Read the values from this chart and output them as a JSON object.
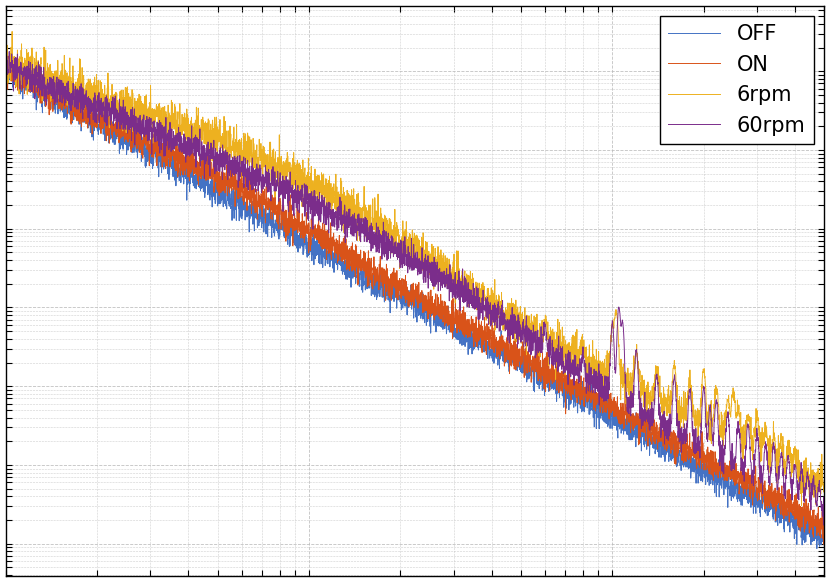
{
  "colors": {
    "OFF": "#4472C4",
    "ON": "#D95319",
    "6rpm": "#EDB120",
    "60rpm": "#7B2D8B"
  },
  "legend_labels": [
    "OFF",
    "ON",
    "6rpm",
    "60rpm"
  ],
  "xlim": [
    1,
    500
  ],
  "background_color": "#FFFFFF",
  "grid_color": "#AAAAAA",
  "figsize": [
    8.3,
    5.82
  ],
  "dpi": 100,
  "legend_fontsize": 15,
  "linewidth": 0.7
}
